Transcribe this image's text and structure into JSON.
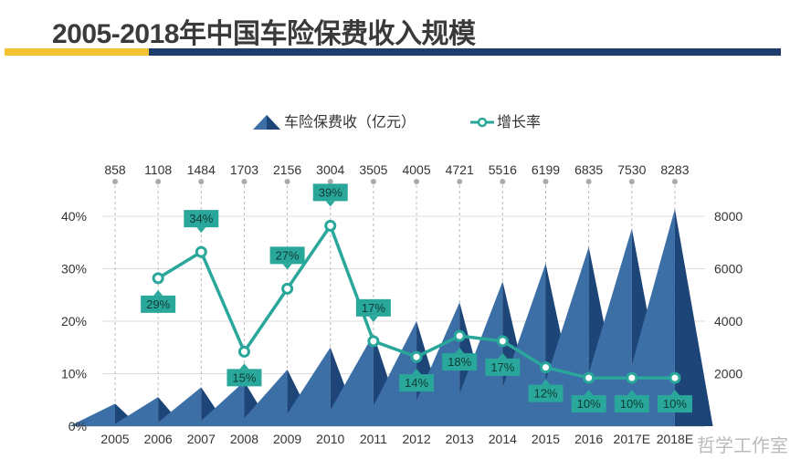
{
  "title": "2005-2018年中国车险保费收入规模",
  "watermark": "哲学工作室",
  "chart_data": {
    "type": "bar+line",
    "categories": [
      "2005",
      "2006",
      "2007",
      "2008",
      "2009",
      "2010",
      "2011",
      "2012",
      "2013",
      "2014",
      "2015",
      "2016",
      "2017E",
      "2018E"
    ],
    "series": [
      {
        "name": "车险保费收（亿元）",
        "type": "triangle-bar",
        "axis": "right",
        "values": [
          858,
          1108,
          1484,
          1703,
          2156,
          3004,
          3505,
          4005,
          4721,
          5516,
          6199,
          6835,
          7530,
          8283
        ],
        "labels": [
          "858",
          "1108",
          "1484",
          "1703",
          "2156",
          "3004",
          "3505",
          "4005",
          "4721",
          "5516",
          "6199",
          "6835",
          "7530",
          "8283"
        ]
      },
      {
        "name": "增长率",
        "type": "line",
        "axis": "left",
        "values": [
          null,
          29,
          34,
          15,
          27,
          39,
          17,
          14,
          18,
          17,
          12,
          10,
          10,
          10
        ],
        "labels": [
          "",
          "29%",
          "34%",
          "15%",
          "27%",
          "39%",
          "17%",
          "14%",
          "18%",
          "17%",
          "12%",
          "10%",
          "10%",
          "10%"
        ]
      }
    ],
    "left_axis": {
      "ticks": [
        "0%",
        "10%",
        "20%",
        "30%",
        "40%"
      ],
      "range": [
        0,
        40
      ]
    },
    "right_axis": {
      "ticks": [
        "2000",
        "4000",
        "6000",
        "8000"
      ],
      "range": [
        0,
        8000
      ]
    },
    "legend": {
      "position": "top-center",
      "items": [
        "车险保费收（亿元）",
        "增长率"
      ]
    },
    "grid": true,
    "colors": {
      "bar_light": "#3b6fa6",
      "bar_dark": "#1e4578",
      "line": "#2aa79b",
      "label_bg": "#2aa79b"
    }
  }
}
